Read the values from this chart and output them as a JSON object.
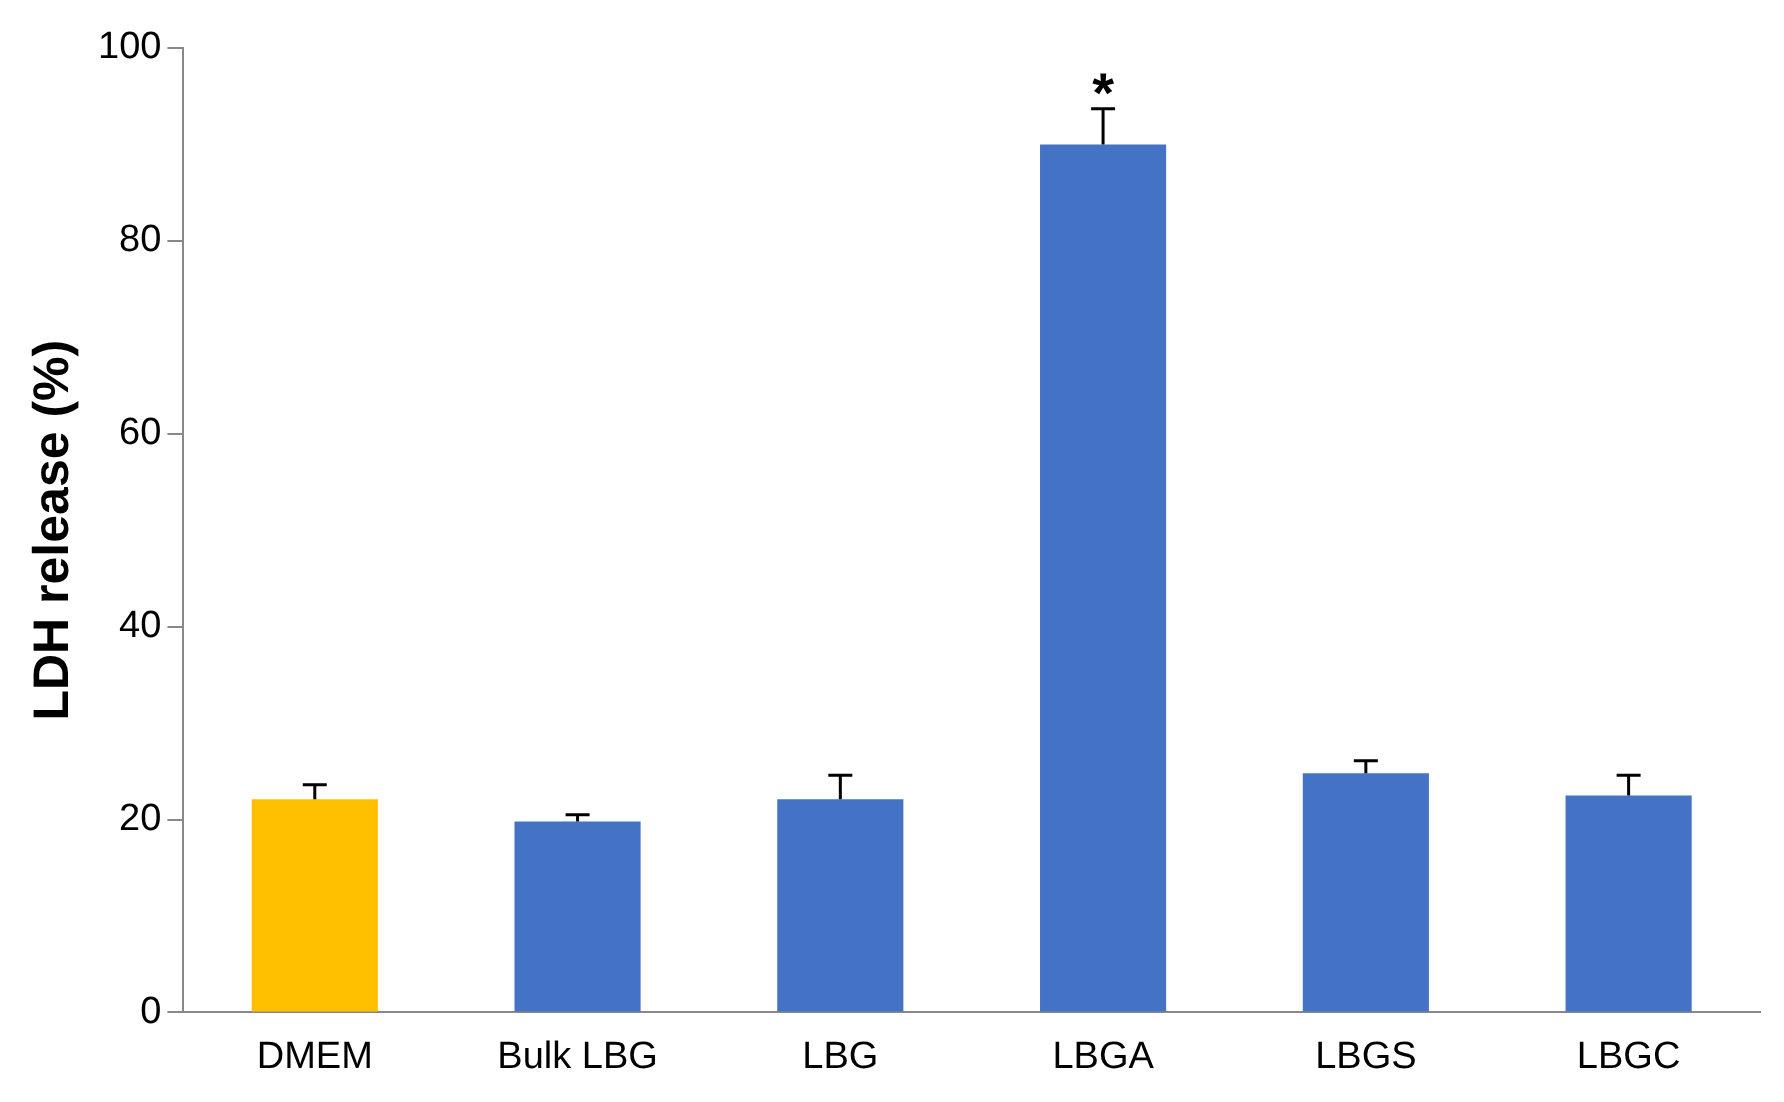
{
  "chart_data": {
    "type": "bar",
    "ylabel": "LDH release (%)",
    "categories": [
      "DMEM",
      "Bulk LBG",
      "LBG",
      "LBGA",
      "LBGS",
      "LBGC"
    ],
    "values": [
      22.1,
      19.8,
      22.1,
      90.0,
      24.8,
      22.5
    ],
    "colors": [
      "#ffc000",
      "#4472c4",
      "#4472c4",
      "#4472c4",
      "#4472c4",
      "#4472c4"
    ],
    "errors": [
      [
        22.1,
        23.6
      ],
      [
        19.8,
        20.5
      ],
      [
        22.1,
        24.6
      ],
      [
        90.0,
        93.7
      ],
      [
        24.8,
        26.1
      ],
      [
        22.5,
        24.6
      ]
    ],
    "ylim": [
      0,
      100
    ],
    "yticks": [
      0,
      20,
      40,
      60,
      80,
      100
    ],
    "grid": false,
    "legend": false,
    "annotations": [
      {
        "text": "*",
        "x": "LBGA",
        "y": 93.7
      }
    ]
  }
}
